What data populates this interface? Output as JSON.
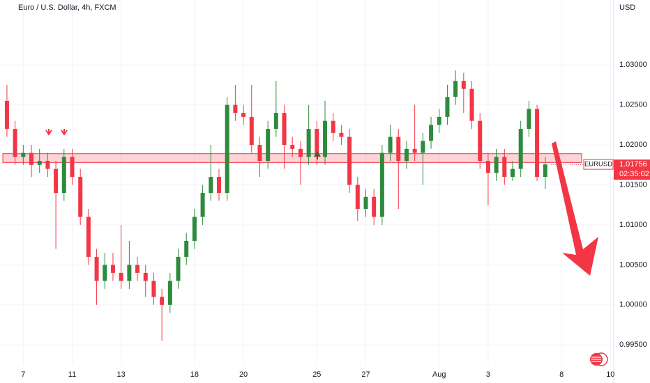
{
  "chart_data": {
    "type": "candlestick",
    "title": "Euro / U.S. Dollar, 4h, FXCM",
    "currency": "USD",
    "up_color": "#2e8b3e",
    "down_color": "#f23645",
    "grid": true,
    "ylim": [
      0.9925,
      1.0355
    ],
    "yticks": [
      {
        "value": 0.995,
        "label": "0.99500"
      },
      {
        "value": 1.0,
        "label": "1.00000"
      },
      {
        "value": 1.005,
        "label": "1.00500"
      },
      {
        "value": 1.01,
        "label": "1.01000"
      },
      {
        "value": 1.015,
        "label": "1.01500"
      },
      {
        "value": 1.02,
        "label": "1.02000"
      },
      {
        "value": 1.025,
        "label": "1.02500"
      },
      {
        "value": 1.03,
        "label": "1.03000"
      }
    ],
    "xlim": [
      -0.85,
      74.4
    ],
    "xticks": [
      {
        "value": 2,
        "label": "7"
      },
      {
        "value": 8,
        "label": "11"
      },
      {
        "value": 14,
        "label": "13"
      },
      {
        "value": 23,
        "label": "18"
      },
      {
        "value": 29,
        "label": "20"
      },
      {
        "value": 38,
        "label": "25"
      },
      {
        "value": 44,
        "label": "27"
      },
      {
        "value": 53,
        "label": "Aug"
      },
      {
        "value": 59,
        "label": "3"
      },
      {
        "value": 68,
        "label": "8"
      },
      {
        "value": 74,
        "label": "10"
      }
    ],
    "open": [
      1.0255,
      1.022,
      1.0185,
      1.019,
      1.0175,
      1.018,
      1.017,
      1.014,
      1.0185,
      1.016,
      1.011,
      1.006,
      1.003,
      1.005,
      1.004,
      1.003,
      1.005,
      1.004,
      1.003,
      1.001,
      1.0,
      1.003,
      1.006,
      1.008,
      1.011,
      1.014,
      1.016,
      1.014,
      1.025,
      1.024,
      1.0235,
      1.02,
      1.018,
      1.022,
      1.024,
      1.02,
      1.0195,
      1.0185,
      1.022,
      1.0185,
      1.023,
      1.0215,
      1.021,
      1.015,
      1.012,
      1.0135,
      1.011,
      1.019,
      1.021,
      1.018,
      1.0195,
      1.019,
      1.0205,
      1.0225,
      1.0235,
      1.026,
      1.028,
      1.027,
      1.023,
      1.018,
      1.0165,
      1.0185,
      1.016,
      1.017,
      1.022,
      1.0245,
      1.016
    ],
    "high": [
      1.0275,
      1.023,
      1.02,
      1.02,
      1.0195,
      1.019,
      1.018,
      1.0195,
      1.0195,
      1.017,
      1.012,
      1.007,
      1.0065,
      1.0065,
      1.01,
      1.008,
      1.006,
      1.005,
      1.004,
      1.002,
      1.004,
      1.007,
      1.009,
      1.012,
      1.015,
      1.02,
      1.017,
      1.026,
      1.0275,
      1.025,
      1.0275,
      1.021,
      1.023,
      1.028,
      1.025,
      1.021,
      1.0205,
      1.025,
      1.023,
      1.0255,
      1.024,
      1.0225,
      1.022,
      1.016,
      1.0145,
      1.0145,
      1.02,
      1.0225,
      1.022,
      1.0205,
      1.025,
      1.0215,
      1.0235,
      1.0245,
      1.0275,
      1.0293,
      1.029,
      1.028,
      1.024,
      1.019,
      1.0195,
      1.0195,
      1.018,
      1.023,
      1.0255,
      1.025,
      1.0185
    ],
    "low": [
      1.021,
      1.0175,
      1.0175,
      1.016,
      1.0165,
      1.016,
      1.007,
      1.013,
      1.015,
      1.01,
      1.005,
      1.0,
      1.002,
      1.003,
      1.002,
      1.002,
      1.003,
      1.001,
      1.0,
      0.9955,
      0.999,
      1.002,
      1.005,
      1.007,
      1.01,
      1.013,
      1.013,
      1.013,
      1.023,
      1.0225,
      1.019,
      1.016,
      1.017,
      1.021,
      1.017,
      1.0185,
      1.015,
      1.0175,
      1.0175,
      1.0175,
      1.0205,
      1.02,
      1.014,
      1.0105,
      1.011,
      1.01,
      1.01,
      1.018,
      1.012,
      1.017,
      1.018,
      1.015,
      1.0195,
      1.0215,
      1.0225,
      1.025,
      1.024,
      1.022,
      1.017,
      1.0125,
      1.0155,
      1.015,
      1.0155,
      1.016,
      1.021,
      1.0155,
      1.0145
    ],
    "close": [
      1.022,
      1.0185,
      1.019,
      1.0175,
      1.018,
      1.017,
      1.014,
      1.0185,
      1.016,
      1.011,
      1.006,
      1.003,
      1.005,
      1.004,
      1.003,
      1.005,
      1.004,
      1.003,
      1.001,
      1.0,
      1.003,
      1.006,
      1.008,
      1.011,
      1.014,
      1.016,
      1.014,
      1.025,
      1.024,
      1.0235,
      1.02,
      1.018,
      1.022,
      1.024,
      1.02,
      1.0195,
      1.0185,
      1.022,
      1.0185,
      1.023,
      1.0215,
      1.021,
      1.015,
      1.012,
      1.0135,
      1.011,
      1.019,
      1.021,
      1.018,
      1.0195,
      1.019,
      1.0205,
      1.0225,
      1.0235,
      1.026,
      1.028,
      1.027,
      1.023,
      1.018,
      1.0165,
      1.0185,
      1.016,
      1.017,
      1.022,
      1.0245,
      1.016,
      1.01756
    ],
    "zone": [
      1.0178,
      1.0189
    ],
    "symbol": "EURUSD",
    "last_price": 1.01756,
    "countdown": "02:35:02"
  }
}
